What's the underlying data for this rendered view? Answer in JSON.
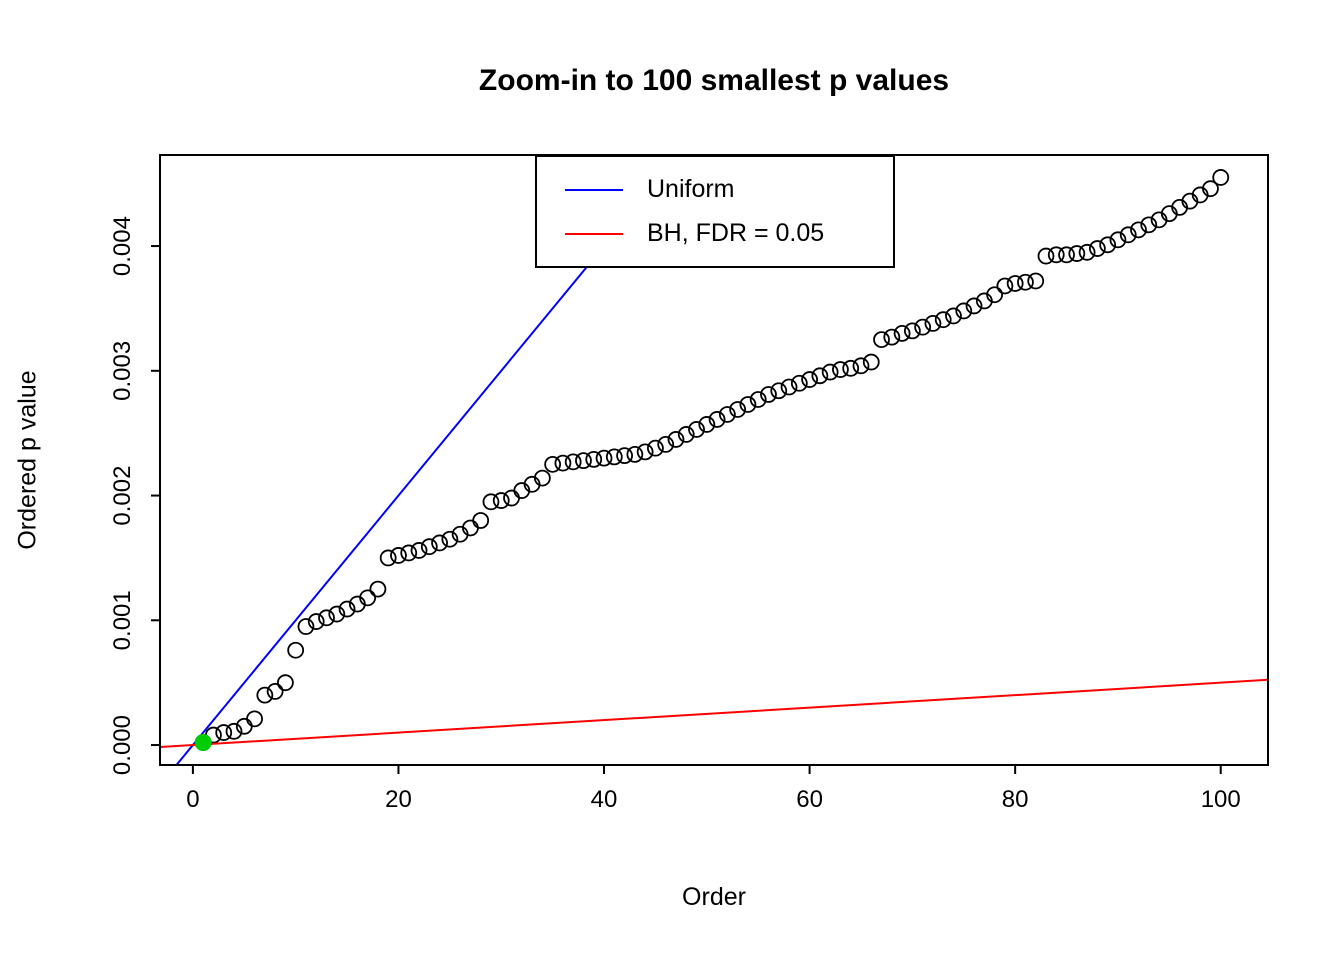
{
  "chart_data": {
    "type": "scatter",
    "title": "Zoom-in to 100 smallest p values",
    "xlabel": "Order",
    "ylabel": "Ordered p value",
    "xlim": [
      -3.2,
      104.6
    ],
    "ylim": [
      -0.00016,
      0.00473
    ],
    "grid": false,
    "x_ticks": [
      0,
      20,
      40,
      60,
      80,
      100
    ],
    "x_tick_labels": [
      "0",
      "20",
      "40",
      "60",
      "80",
      "100"
    ],
    "y_ticks": [
      0,
      0.001,
      0.002,
      0.003,
      0.004
    ],
    "y_tick_labels": [
      "0.000",
      "0.001",
      "0.002",
      "0.003",
      "0.004"
    ],
    "series": [
      {
        "name": "ordered-p-values",
        "marker": "open-circle",
        "color": "#000000",
        "x_start": 1,
        "y": [
          2e-05,
          8e-05,
          0.0001,
          0.00011,
          0.00015,
          0.00021,
          0.0004,
          0.00043,
          0.0005,
          0.00076,
          0.00095,
          0.00099,
          0.00102,
          0.00105,
          0.00109,
          0.00113,
          0.00118,
          0.00125,
          0.0015,
          0.00152,
          0.00154,
          0.00156,
          0.00159,
          0.00162,
          0.00165,
          0.00169,
          0.00174,
          0.0018,
          0.00195,
          0.00196,
          0.00198,
          0.00204,
          0.00209,
          0.00214,
          0.00225,
          0.00226,
          0.00227,
          0.00228,
          0.00229,
          0.0023,
          0.00231,
          0.00232,
          0.00233,
          0.00235,
          0.00238,
          0.00241,
          0.00245,
          0.00249,
          0.00253,
          0.00257,
          0.00261,
          0.00265,
          0.00269,
          0.00273,
          0.00277,
          0.00281,
          0.00284,
          0.00287,
          0.0029,
          0.00293,
          0.00296,
          0.00299,
          0.00301,
          0.00302,
          0.00304,
          0.00307,
          0.00325,
          0.00327,
          0.0033,
          0.00332,
          0.00335,
          0.00338,
          0.00341,
          0.00344,
          0.00348,
          0.00352,
          0.00356,
          0.00361,
          0.00368,
          0.0037,
          0.00371,
          0.00372,
          0.00392,
          0.00393,
          0.00393,
          0.00394,
          0.00395,
          0.00398,
          0.00401,
          0.00405,
          0.00409,
          0.00413,
          0.00417,
          0.00421,
          0.00426,
          0.00431,
          0.00436,
          0.00441,
          0.00446,
          0.00455
        ]
      },
      {
        "name": "bh-significant-point",
        "marker": "filled-circle",
        "color": "#00cc00",
        "x": [
          1
        ],
        "y": [
          2e-05
        ]
      }
    ],
    "lines": [
      {
        "name": "uniform-line",
        "label": "Uniform",
        "color": "#0000ff",
        "slope": 0.0001,
        "intercept": 0
      },
      {
        "name": "bh-line",
        "label": "BH, FDR = 0.05",
        "color": "#ff0000",
        "slope": 5e-06,
        "intercept": 0
      }
    ],
    "legend": {
      "position": "top-center",
      "entries": [
        {
          "label": "Uniform",
          "color": "#0000ff"
        },
        {
          "label": "BH, FDR = 0.05",
          "color": "#ff0000"
        }
      ]
    }
  }
}
